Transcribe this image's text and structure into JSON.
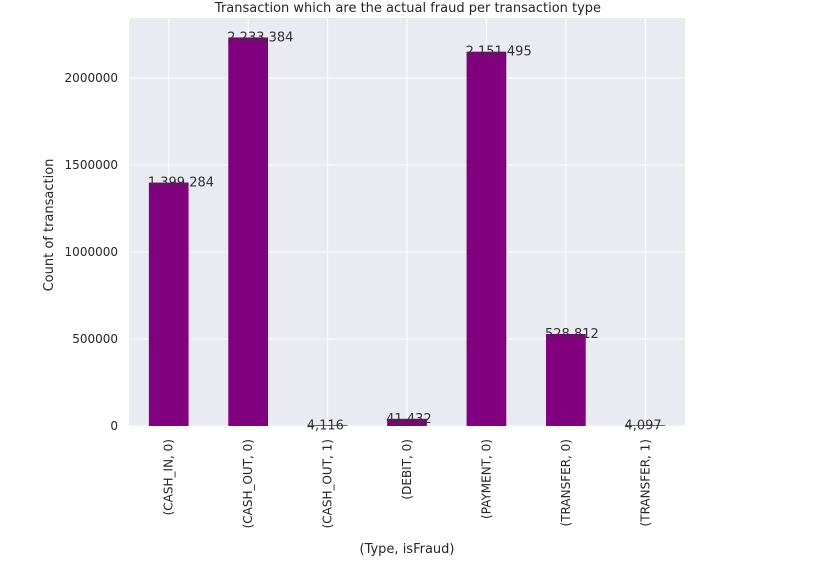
{
  "chart_data": {
    "type": "bar",
    "title": "Transaction which are the actual fraud per transaction type",
    "xlabel": "(Type, isFraud)",
    "ylabel": "Count of transaction",
    "categories": [
      "(CASH_IN, 0)",
      "(CASH_OUT, 0)",
      "(CASH_OUT, 1)",
      "(DEBIT, 0)",
      "(PAYMENT, 0)",
      "(TRANSFER, 0)",
      "(TRANSFER, 1)"
    ],
    "values": [
      1399284,
      2233384,
      4116,
      41432,
      2151495,
      528812,
      4097
    ],
    "value_labels": [
      "1,399,284",
      "2,233,384",
      "4,116",
      "41,432",
      "2,151,495",
      "528,812",
      "4,097"
    ],
    "ylim": [
      0,
      2345053
    ],
    "yticks": [
      0,
      500000,
      1000000,
      1500000,
      2000000
    ],
    "ytick_labels": [
      "0",
      "500000",
      "1000000",
      "1500000",
      "2000000"
    ],
    "grid": true,
    "colors": {
      "bar": "#800080",
      "plot_background": "#eaeaf2",
      "grid": "#ffffff"
    }
  }
}
